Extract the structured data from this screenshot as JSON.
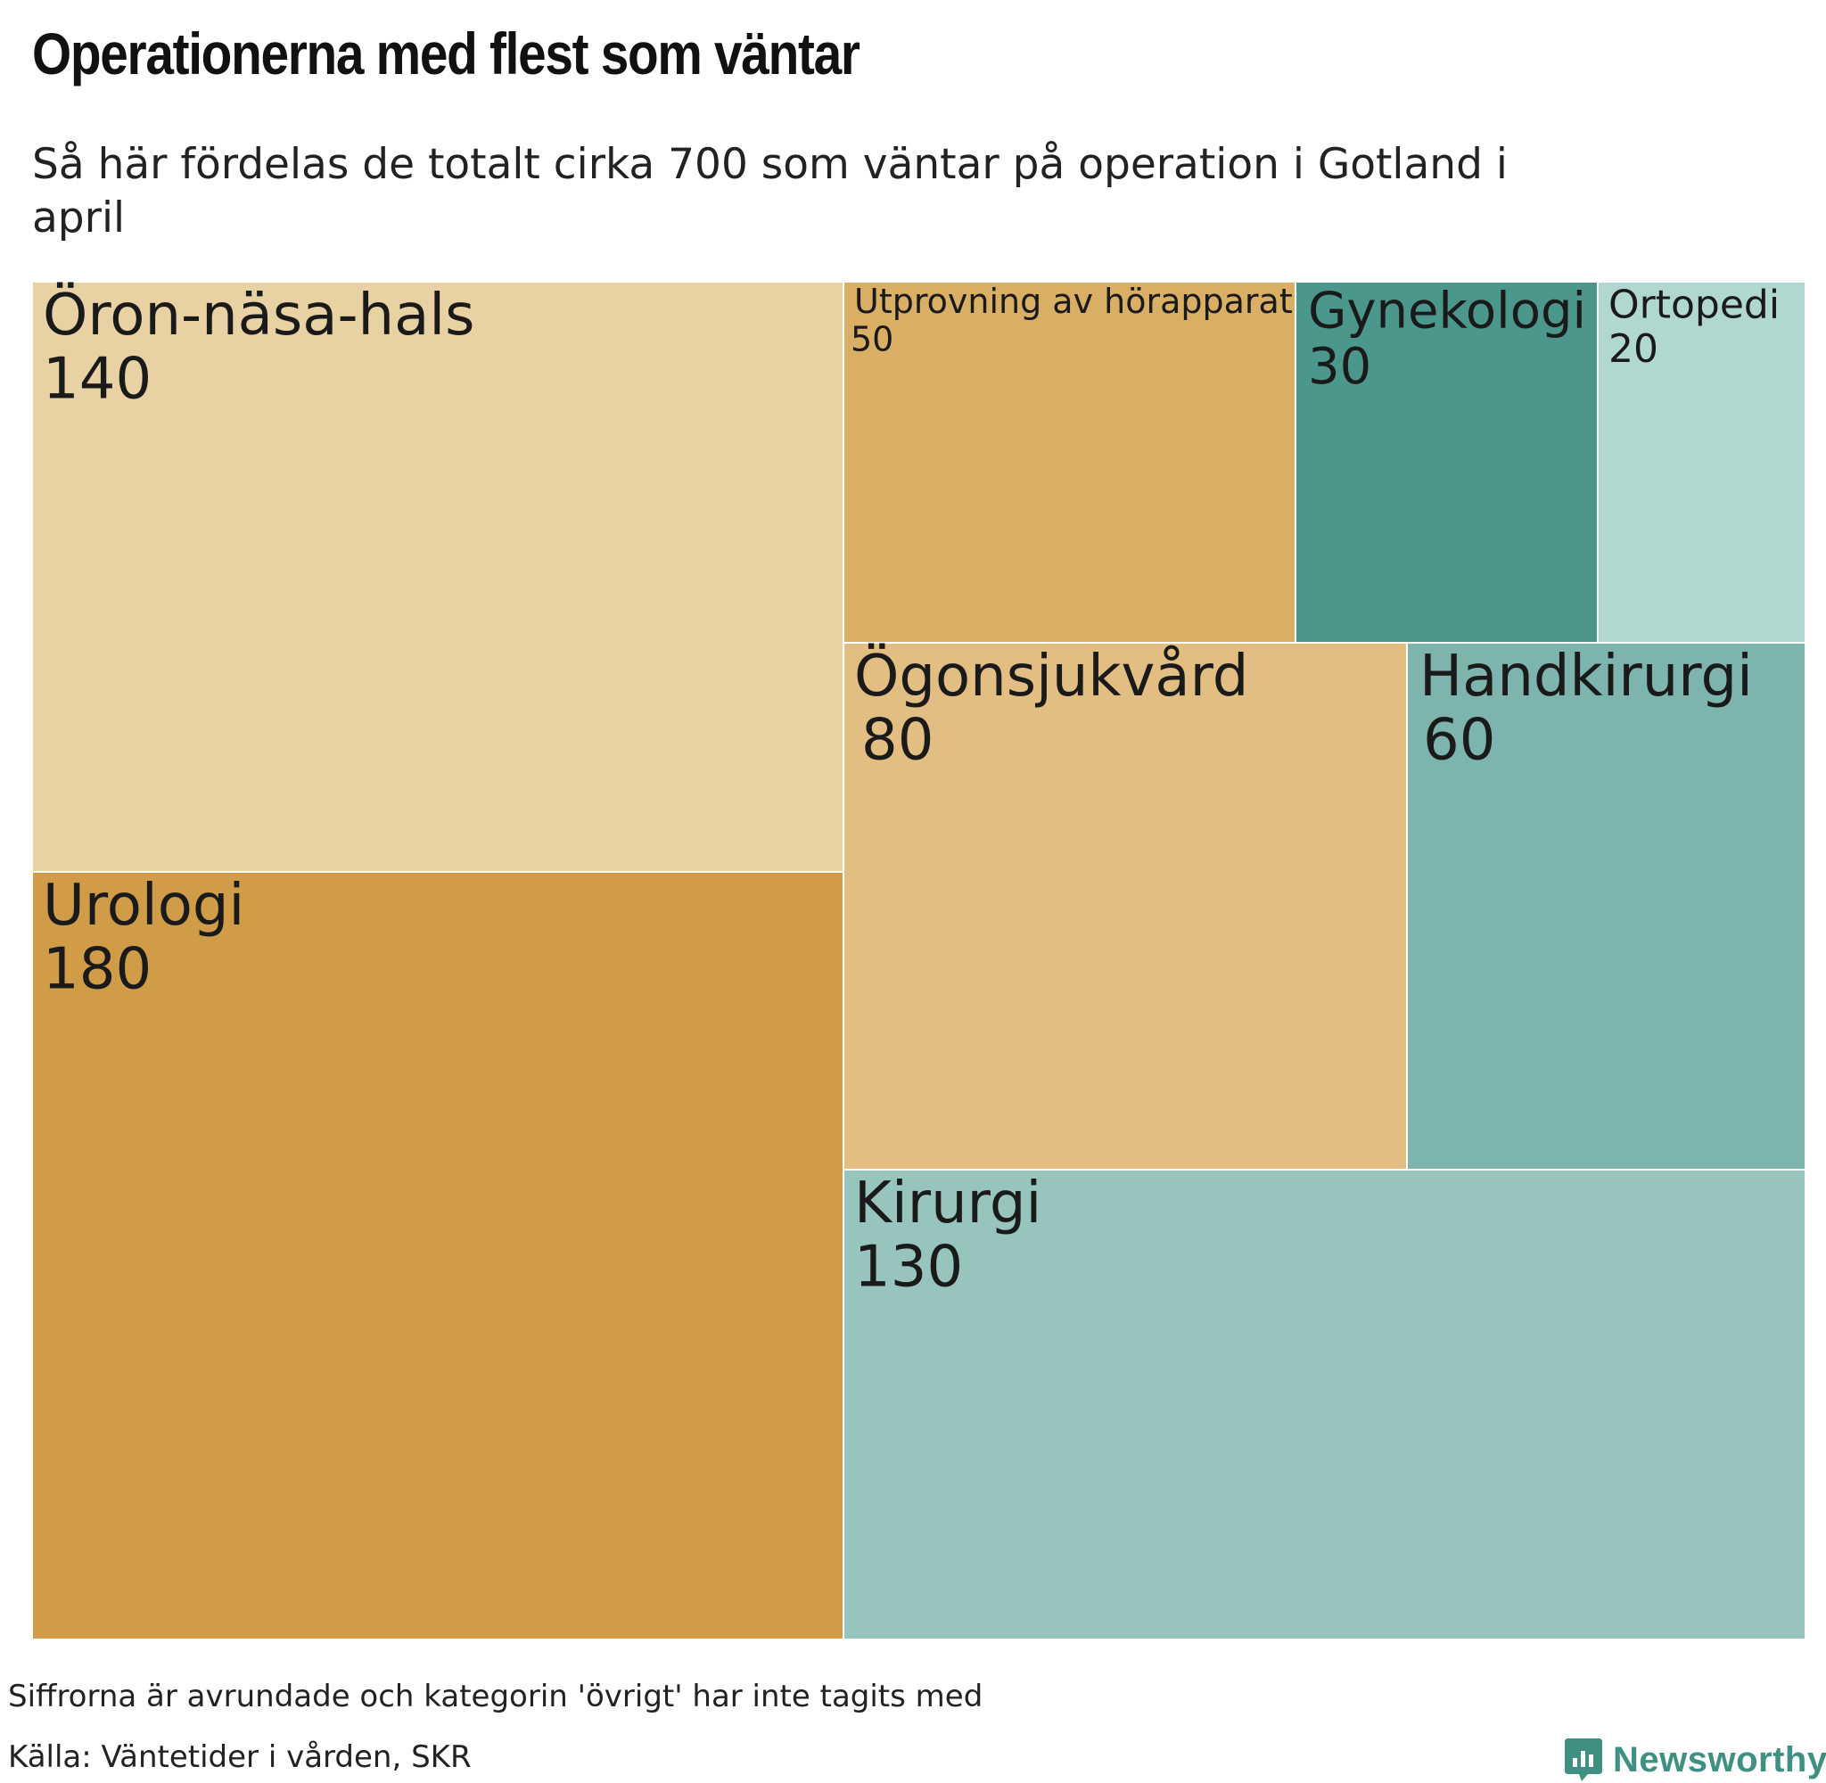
{
  "chart_data": {
    "type": "treemap",
    "title": "Operationerna med flest som väntar",
    "subtitle": "Så här fördelas de totalt cirka 700 som väntar på operation i Gotland i april",
    "items": [
      {
        "label": "Öron-näsa-hals",
        "value": 140,
        "value_text": "140",
        "color": "#e8d2a4"
      },
      {
        "label": "Urologi",
        "value": 180,
        "value_text": "180",
        "color": "#d09c47"
      },
      {
        "label": "Utprovning av hörapparat",
        "value": 50,
        "value_text": "50",
        "color": "#d9af66"
      },
      {
        "label": "Gynekologi",
        "value": 30,
        "value_text": "30",
        "color": "#4b978b"
      },
      {
        "label": "Ortopedi",
        "value": 20,
        "value_text": "20",
        "color": "#b1d7d1"
      },
      {
        "label": "Ögonsjukvård",
        "value": 80,
        "value_text": "80",
        "color": "#e2be83"
      },
      {
        "label": "Handkirurgi",
        "value": 60,
        "value_text": "60",
        "color": "#7db4ad"
      },
      {
        "label": "Kirurgi",
        "value": 130,
        "value_text": "130",
        "color": "#98c4be"
      }
    ]
  },
  "footnote": "Siffrorna är avrundade och kategorin 'övrigt' har inte tagits med",
  "source": "Källa: Väntetider i vården, SKR",
  "brand": {
    "name": "Newsworthy",
    "icon": "bar-chart-badge-icon",
    "color": "#3f8f83"
  }
}
